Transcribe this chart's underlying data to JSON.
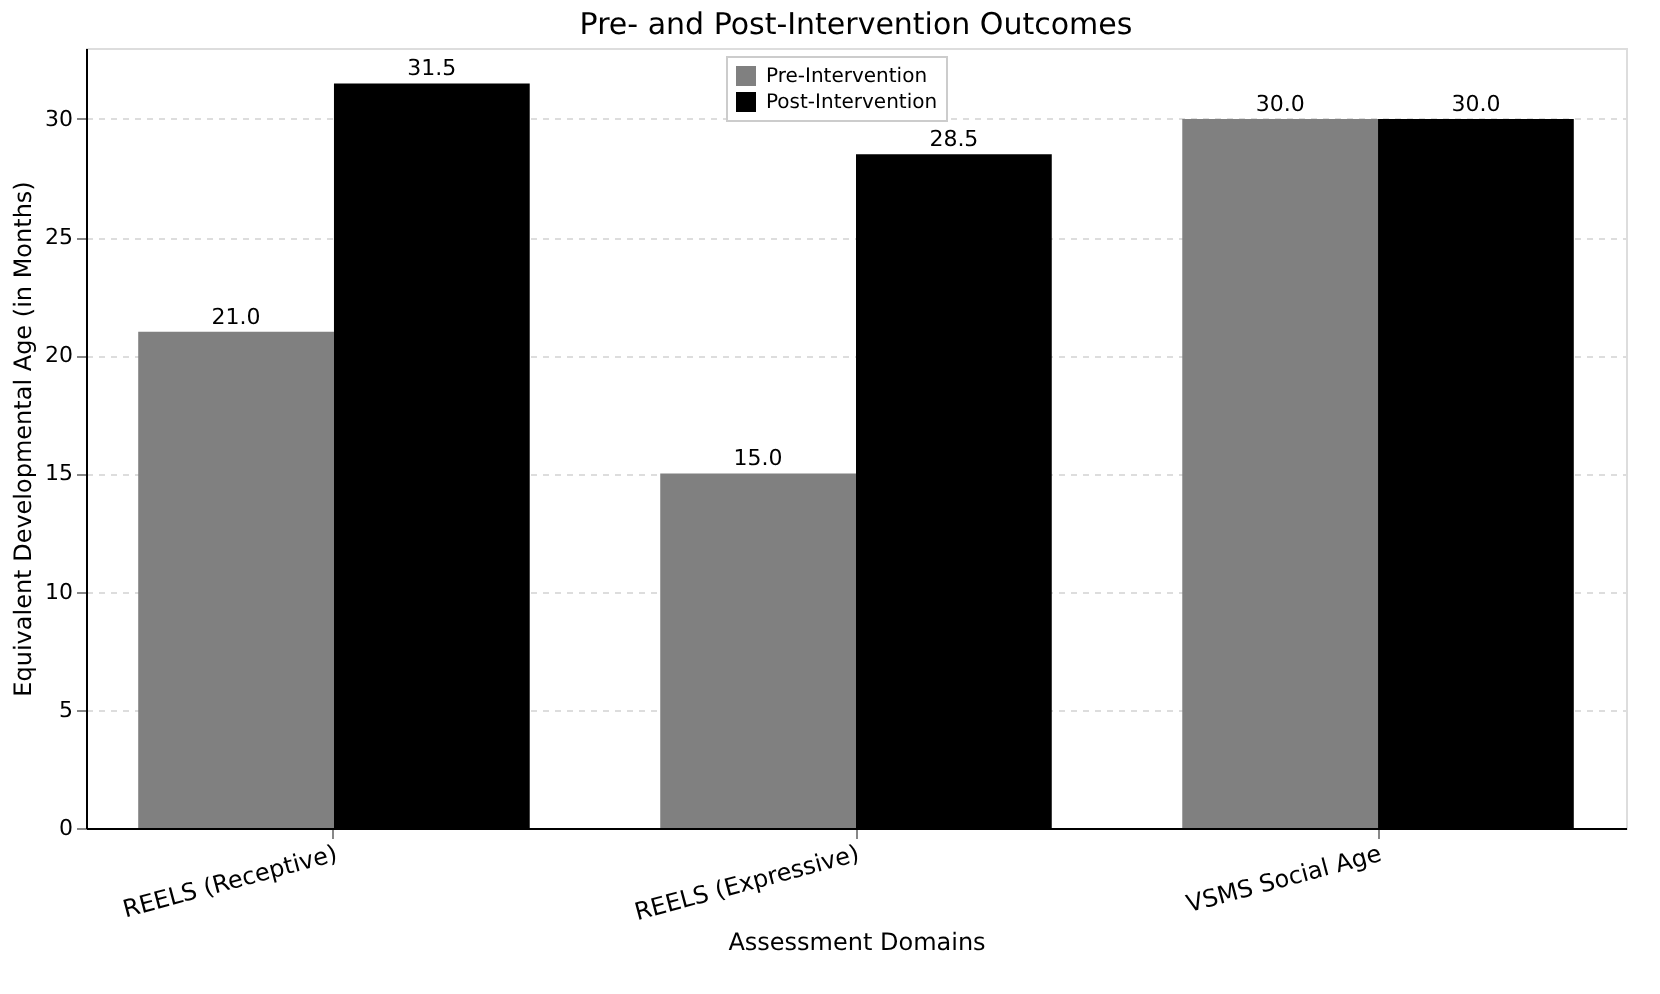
{
  "chart_data": {
    "type": "bar",
    "title": "Pre- and Post-Intervention Outcomes",
    "xlabel": "Assessment Domains",
    "ylabel": "Equivalent Developmental Age (in Months)",
    "categories": [
      "REELS (Receptive)",
      "REELS (Expressive)",
      "VSMS Social Age"
    ],
    "series": [
      {
        "name": "Pre-Intervention",
        "color": "#808080",
        "values": [
          21.0,
          15.0,
          30.0
        ],
        "value_labels": [
          "21.0",
          "15.0",
          "30.0"
        ]
      },
      {
        "name": "Post-Intervention",
        "color": "#000000",
        "values": [
          31.5,
          28.5,
          30.0
        ],
        "value_labels": [
          "31.5",
          "28.5",
          "30.0"
        ]
      }
    ],
    "ylim": [
      0,
      33
    ],
    "yticks": [
      0,
      5,
      10,
      15,
      20,
      25,
      30
    ],
    "grid": "y",
    "legend": "top"
  }
}
